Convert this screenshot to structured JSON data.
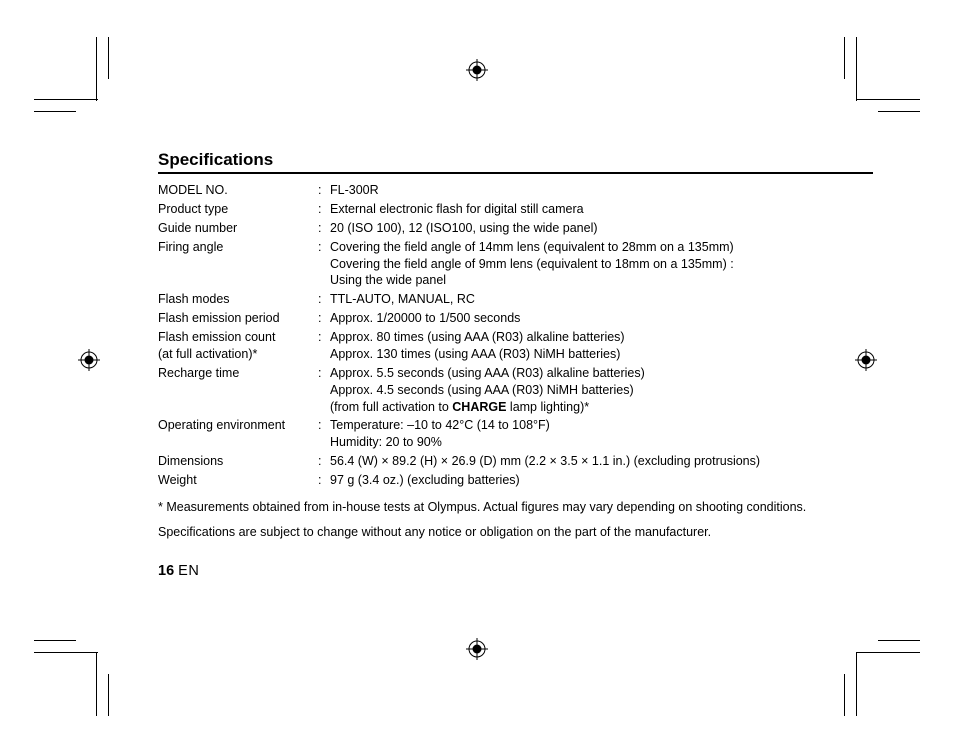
{
  "section_title": "Specifications",
  "specs": [
    {
      "label": "MODEL NO.",
      "lines": [
        "FL-300R"
      ]
    },
    {
      "label": "Product type",
      "lines": [
        "External electronic flash for digital still camera"
      ]
    },
    {
      "label": "Guide number",
      "lines": [
        "20 (ISO 100), 12 (ISO100, using the wide panel)"
      ]
    },
    {
      "label": "Firing angle",
      "lines": [
        "Covering the field angle of 14mm lens (equivalent to 28mm on a 135mm)",
        "Covering the field angle of 9mm lens (equivalent to 18mm on a 135mm) :",
        "Using the wide panel"
      ]
    },
    {
      "label": "Flash modes",
      "lines": [
        "TTL-AUTO, MANUAL, RC"
      ]
    },
    {
      "label": "Flash emission period",
      "lines": [
        "Approx. 1/20000 to 1/500 seconds"
      ]
    },
    {
      "label": "Flash emission count\n(at full activation)*",
      "lines": [
        "Approx. 80 times (using AAA (R03) alkaline batteries)",
        "Approx. 130 times (using AAA (R03) NiMH batteries)"
      ]
    },
    {
      "label": "Recharge time",
      "lines": [
        "Approx. 5.5 seconds (using AAA (R03) alkaline batteries)",
        "Approx. 4.5 seconds (using AAA (R03) NiMH batteries)",
        "(from full activation to <b>CHARGE</b> lamp lighting)*"
      ]
    },
    {
      "label": "Operating environment",
      "lines": [
        "Temperature: –10 to 42°C (14 to 108°F)",
        "Humidity: 20 to 90%"
      ]
    },
    {
      "label": "Dimensions",
      "lines": [
        "56.4 (W) × 89.2 (H) × 26.9 (D) mm (2.2 × 3.5 × 1.1 in.) (excluding protrusions)"
      ]
    },
    {
      "label": "Weight",
      "lines": [
        "97 g (3.4 oz.) (excluding batteries)"
      ]
    }
  ],
  "footnote": "* Measurements obtained from in-house tests at Olympus. Actual figures may vary depending on shooting conditions.",
  "note2": "Specifications are subject to change without any notice or obligation on the part of the manufacturer.",
  "page_number": "16",
  "page_lang": "EN",
  "colors": {
    "text": "#000000",
    "bg": "#ffffff",
    "rule": "#000000"
  }
}
